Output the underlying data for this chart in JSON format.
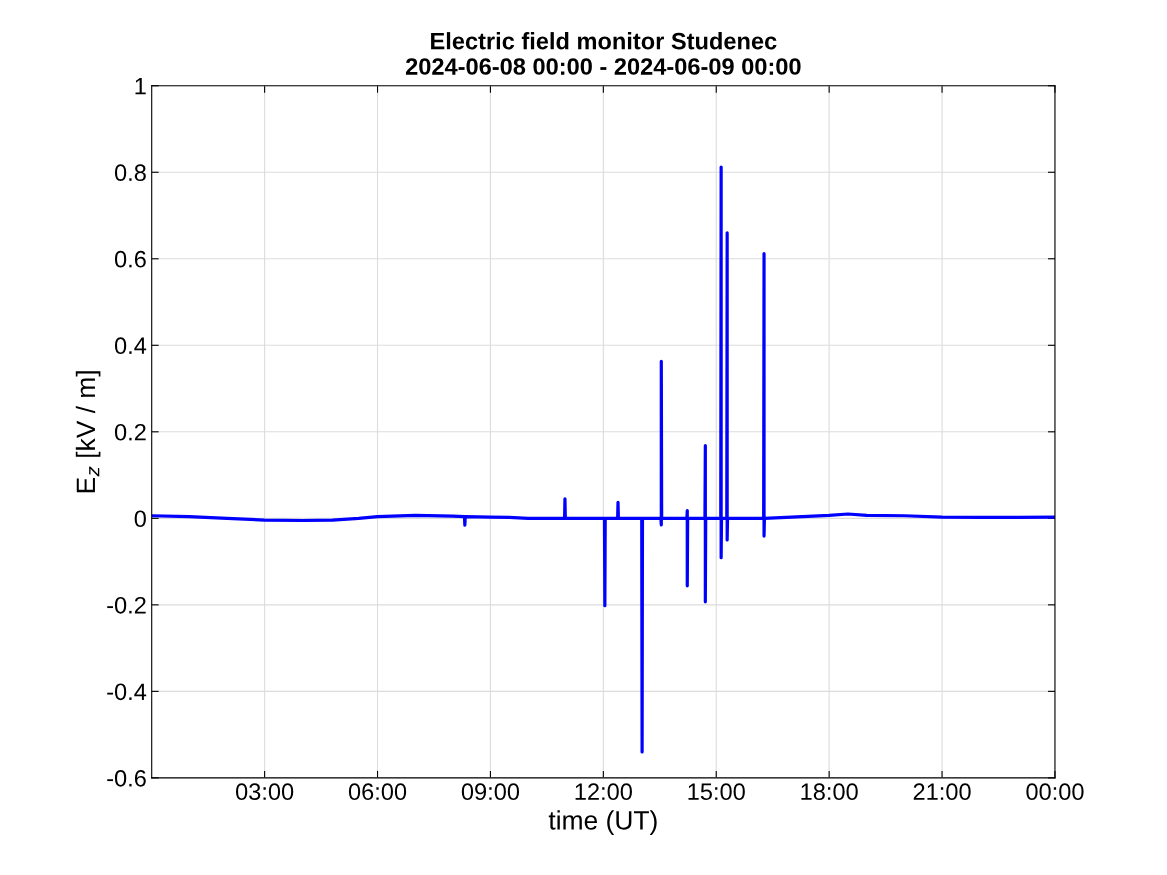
{
  "chart_data": {
    "type": "line",
    "title": "Electric field monitor Studenec",
    "subtitle": "2024-06-08 00:00 - 2024-06-09 00:00",
    "xlabel": "time (UT)",
    "ylabel": "E$_{z}$ [kV / m]",
    "x": [
      0,
      1,
      2,
      3,
      4,
      4.8,
      5.5,
      6,
      7,
      8,
      8.31,
      8.32,
      8.33,
      9,
      9.5,
      10,
      10.5,
      10.97,
      10.98,
      10.99,
      11.5,
      12.03,
      12.04,
      12.05,
      12.38,
      12.39,
      12.4,
      13.02,
      13.03,
      13.04,
      13.53,
      13.54,
      13.54,
      13.55,
      14.22,
      14.23,
      14.23,
      14.24,
      14.7,
      14.71,
      14.71,
      14.72,
      15.12,
      15.13,
      15.13,
      15.14,
      15.28,
      15.29,
      15.29,
      15.3,
      16.26,
      16.27,
      16.27,
      16.28,
      17,
      18,
      18.5,
      19,
      20,
      21,
      22,
      23,
      24
    ],
    "series": [
      {
        "color": "#0000ff",
        "values": [
          0.006,
          0.004,
          0.0,
          -0.004,
          -0.005,
          -0.004,
          0.0,
          0.004,
          0.007,
          0.005,
          0.004,
          -0.016,
          0.004,
          0.003,
          0.002,
          0.0,
          0.0,
          0.0,
          0.045,
          0.0,
          0.0,
          0.0,
          -0.202,
          0.0,
          0.0,
          0.037,
          0.0,
          0.0,
          -0.54,
          0.0,
          0.0,
          -0.015,
          0.363,
          0.0,
          0.0,
          0.018,
          -0.156,
          0.0,
          0.0,
          0.168,
          -0.193,
          0.0,
          0.0,
          0.812,
          -0.091,
          0.0,
          0.0,
          0.66,
          -0.05,
          0.0,
          0.0,
          0.612,
          -0.041,
          0.0,
          0.003,
          0.007,
          0.01,
          0.007,
          0.006,
          0.003,
          0.002,
          0.002,
          0.003
        ]
      }
    ],
    "xlim": [
      0,
      24
    ],
    "xticks": [
      {
        "value": 3,
        "label": "03:00"
      },
      {
        "value": 6,
        "label": "06:00"
      },
      {
        "value": 9,
        "label": "09:00"
      },
      {
        "value": 12,
        "label": "12:00"
      },
      {
        "value": 15,
        "label": "15:00"
      },
      {
        "value": 18,
        "label": "18:00"
      },
      {
        "value": 21,
        "label": "21:00"
      },
      {
        "value": 24,
        "label": "00:00"
      }
    ],
    "ylim": [
      -0.6,
      1
    ],
    "yticks": [
      -0.6,
      -0.4,
      -0.2,
      0,
      0.2,
      0.4,
      0.6,
      0.8,
      1
    ],
    "grid": true,
    "line_style": "solid"
  }
}
